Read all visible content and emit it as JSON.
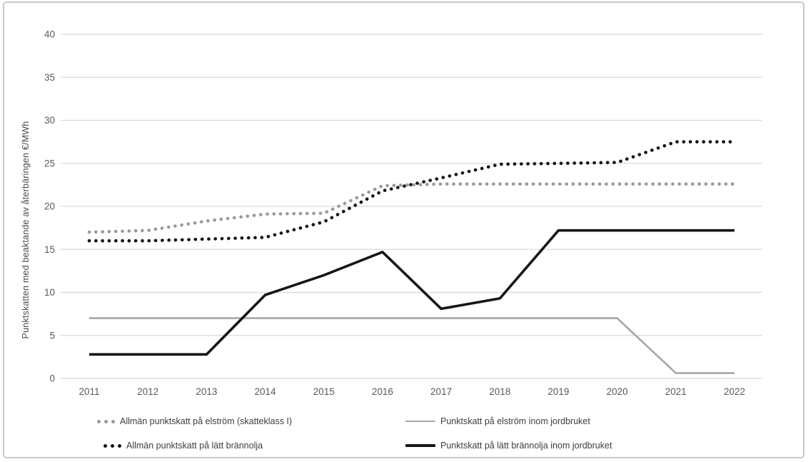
{
  "figure": {
    "background": "#ffffff",
    "border_color": "#c9c9c9"
  },
  "chart_data": {
    "type": "line",
    "title": "",
    "xlabel": "",
    "ylabel": "Punktskatten med beaktande av återbäringen €/MWh",
    "x": [
      2011,
      2012,
      2013,
      2014,
      2015,
      2016,
      2017,
      2018,
      2019,
      2020,
      2021,
      2022
    ],
    "x_tick_labels": [
      "2011",
      "2012",
      "2013",
      "2014",
      "2015",
      "2016",
      "2017",
      "2018",
      "2019",
      "2020",
      "2021",
      "2022"
    ],
    "y_ticks": [
      0,
      5,
      10,
      15,
      20,
      25,
      30,
      35,
      40
    ],
    "ylim": [
      0,
      40
    ],
    "grid": "horizontal-only",
    "gridline_color": "#d9d9d9",
    "tick_label_color": "#595959",
    "legend_position": "bottom",
    "series": [
      {
        "name": "Allmän punktskatt på elström (skatteklass I)",
        "style": "dotted",
        "color": "#9a9a9a",
        "line_width": 4.6,
        "values": [
          17.0,
          17.2,
          18.3,
          19.1,
          19.2,
          22.4,
          22.6,
          22.6,
          22.6,
          22.6,
          22.6,
          22.6
        ]
      },
      {
        "name": "Allmän punktskatt på lätt brännolja",
        "style": "dotted",
        "color": "#121212",
        "line_width": 4.6,
        "values": [
          16.0,
          16.0,
          16.2,
          16.4,
          18.2,
          21.8,
          23.3,
          24.9,
          25.0,
          25.1,
          27.5,
          27.5
        ]
      },
      {
        "name": "Punktskatt på elström inom jordbruket",
        "style": "solid",
        "color": "#a6a6a6",
        "line_width": 2.6,
        "values": [
          7.0,
          7.0,
          7.0,
          7.0,
          7.0,
          7.0,
          7.0,
          7.0,
          7.0,
          7.0,
          0.63,
          0.63
        ]
      },
      {
        "name": "Punktskatt på lätt brännolja inom jordbruket",
        "style": "solid",
        "color": "#161616",
        "line_width": 3.6,
        "values": [
          2.8,
          2.8,
          2.8,
          9.7,
          12.0,
          14.7,
          8.1,
          9.3,
          17.2,
          17.2,
          17.2,
          17.2
        ]
      }
    ]
  },
  "legend": {
    "row1_col1": "Allmän punktskatt på elström (skatteklass I)",
    "row1_col2": "Punktskatt på elström inom jordbruket",
    "row2_col1": "Allmän punktskatt på lätt brännolja",
    "row2_col2": "Punktskatt på lätt brännolja inom jordbruket"
  }
}
